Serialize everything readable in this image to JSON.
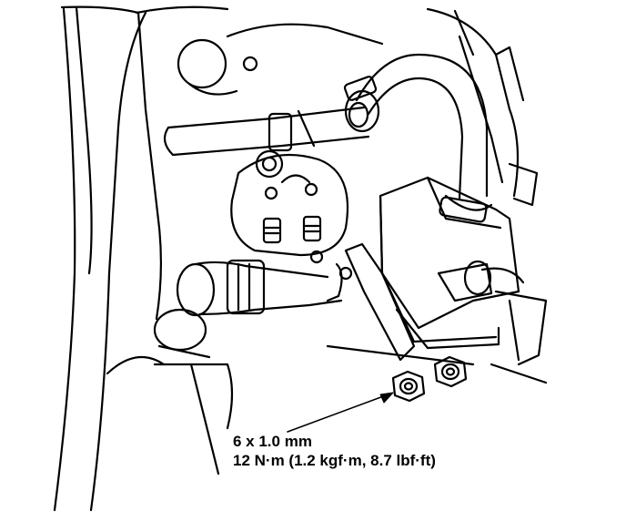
{
  "callout": {
    "size": "6 x 1.0 mm",
    "torque": "12 N·m (1.2 kgf·m, 8.7 lbf·ft)"
  },
  "colors": {
    "ink": "#000000",
    "paper": "#ffffff"
  }
}
